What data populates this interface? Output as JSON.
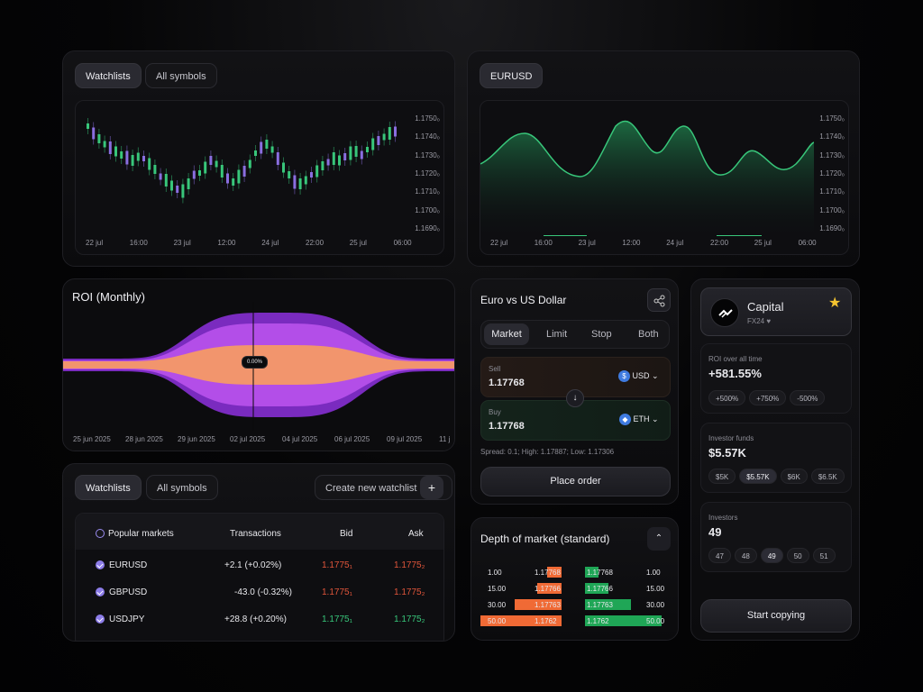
{
  "colors": {
    "green": "#38c67a",
    "purple": "#8a6ee0",
    "red": "#e0553a",
    "orange_bar": "#f06a35",
    "green_bar": "#1fa656",
    "roi_inner": "#f2956d",
    "roi_mid": "#b34ee8",
    "roi_outer": "#7a2bbf"
  },
  "watchlist_chart": {
    "tabs": [
      "Watchlists",
      "All symbols"
    ],
    "y_ticks": [
      "1.1750₀",
      "1.1740₀",
      "1.1730₀",
      "1.1720₀",
      "1.1710₀",
      "1.1700₀",
      "1.1690₀"
    ],
    "x_ticks": [
      "22 jul",
      "16:00",
      "23 jul",
      "12:00",
      "24 jul",
      "22:00",
      "25 jul",
      "06:00"
    ]
  },
  "eurusd_chart": {
    "tab": "EURUSD",
    "y_ticks": [
      "1.1750₀",
      "1.1740₀",
      "1.1730₀",
      "1.1720₀",
      "1.1710₀",
      "1.1700₀",
      "1.1690₀"
    ],
    "x_ticks": [
      "22 jul",
      "16:00",
      "23 jul",
      "12:00",
      "24 jul",
      "22:00",
      "25 jul",
      "06:00"
    ]
  },
  "roi": {
    "title": "ROI (Monthly)",
    "marker": "0.00%",
    "x_ticks": [
      "25 jun 2025",
      "28 jun 2025",
      "29 jun 2025",
      "02 jul 2025",
      "04 jul 2025",
      "06 jul 2025",
      "09 jul 2025",
      "11 j"
    ]
  },
  "markets": {
    "tabs": [
      "Watchlists",
      "All symbols"
    ],
    "create_label": "Create new watchlist",
    "plus_icon": "+",
    "headers": {
      "name": "Popular markets",
      "tx": "Transactions",
      "bid": "Bid",
      "ask": "Ask"
    },
    "rows": [
      {
        "name": "EURUSD",
        "tx": "+2.1 (+0.02%)",
        "bid": "1.1775₁",
        "ask": "1.1775₂",
        "bid_color": "#e0553a",
        "ask_color": "#e0553a"
      },
      {
        "name": "GBPUSD",
        "tx": "-43.0 (-0.32%)",
        "bid": "1.1775₁",
        "ask": "1.1775₂",
        "bid_color": "#e0553a",
        "ask_color": "#e0553a"
      },
      {
        "name": "USDJPY",
        "tx": "+28.8 (+0.20%)",
        "bid": "1.1775₁",
        "ask": "1.1775₂",
        "bid_color": "#38c67a",
        "ask_color": "#38c67a"
      }
    ]
  },
  "order": {
    "title": "Euro vs US Dollar",
    "tabs": [
      "Market",
      "Limit",
      "Stop",
      "Both"
    ],
    "sell_label": "Sell",
    "sell_value": "1.17768",
    "sell_currency": "USD",
    "buy_label": "Buy",
    "buy_value": "1.17768",
    "buy_currency": "ETH",
    "spread": "Spread: 0.1; High: 1.17887; Low: 1.17306",
    "place_order": "Place order"
  },
  "depth": {
    "title": "Depth of market (standard)",
    "rows": [
      {
        "lvol": "1.00",
        "lprice": "1.17768",
        "rprice": "1.17768",
        "rvol": "1.00",
        "lfill": 0.18,
        "rfill": 0.18
      },
      {
        "lvol": "15.00",
        "lprice": "1.17766",
        "rprice": "1.17766",
        "rvol": "15.00",
        "lfill": 0.3,
        "rfill": 0.3
      },
      {
        "lvol": "30.00",
        "lprice": "1.17763",
        "rprice": "1.17763",
        "rvol": "30.00",
        "lfill": 0.58,
        "rfill": 0.6
      },
      {
        "lvol": "50.00",
        "lprice": "1.1762",
        "rprice": "1.1762",
        "rvol": "50.00",
        "lfill": 1.0,
        "rfill": 1.0
      }
    ]
  },
  "capital": {
    "name": "Capital",
    "sub": "FX24",
    "roi_label": "ROI over all time",
    "roi_value": "+581.55%",
    "roi_chips": [
      "+500%",
      "+750%",
      "-500%"
    ],
    "funds_label": "Investor funds",
    "funds_value": "$5.57K",
    "funds_chips": [
      "$5K",
      "$5.57K",
      "$6K",
      "$6.5K"
    ],
    "investors_label": "Investors",
    "investors_value": "49",
    "investors_chips": [
      "47",
      "48",
      "49",
      "50",
      "51"
    ],
    "start": "Start copying"
  }
}
